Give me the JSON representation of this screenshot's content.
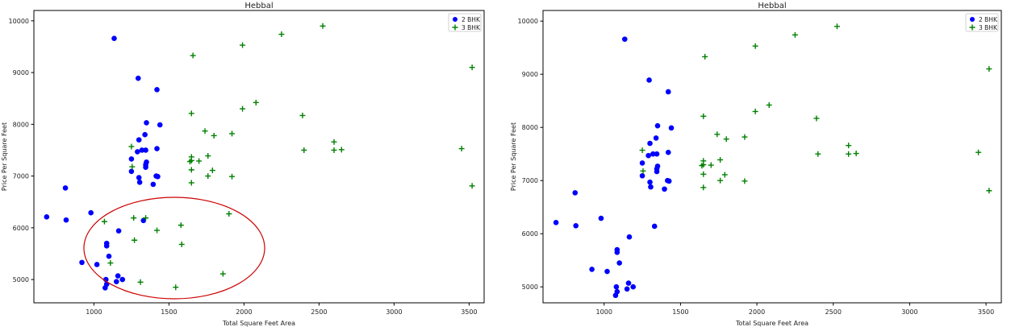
{
  "colors": {
    "series_2bhk": "#0000ff",
    "series_3bhk": "#008000",
    "highlight_ellipse": "#cc0000",
    "axes": "#000000"
  },
  "chart_data": [
    {
      "type": "scatter",
      "title": "Hebbal",
      "xlabel": "Total Square Feet Area",
      "ylabel": "Price Per Square Feet",
      "xlim": [
        600,
        3600
      ],
      "ylim": [
        4550,
        10200
      ],
      "xticks": [
        1000,
        1500,
        2000,
        2500,
        3000,
        3500
      ],
      "yticks": [
        5000,
        6000,
        7000,
        8000,
        9000,
        10000
      ],
      "grid": false,
      "legend": "top-right",
      "series": [
        {
          "name": "2 BHK",
          "marker": "circle",
          "color": "#0000ff",
          "points": [
            [
              1135,
              9660
            ],
            [
              1295,
              8890
            ],
            [
              1420,
              8670
            ],
            [
              1350,
              8030
            ],
            [
              1440,
              7990
            ],
            [
              1340,
              7800
            ],
            [
              1300,
              7700
            ],
            [
              1320,
              7500
            ],
            [
              1345,
              7500
            ],
            [
              1420,
              7530
            ],
            [
              1290,
              7470
            ],
            [
              1250,
              7330
            ],
            [
              1350,
              7270
            ],
            [
              1345,
              7220
            ],
            [
              1345,
              7170
            ],
            [
              1250,
              7090
            ],
            [
              1415,
              7000
            ],
            [
              1425,
              6990
            ],
            [
              1300,
              6970
            ],
            [
              1305,
              6880
            ],
            [
              1395,
              6840
            ],
            [
              685,
              6210
            ],
            [
              810,
              6770
            ],
            [
              815,
              6150
            ],
            [
              980,
              6290
            ],
            [
              1330,
              6140
            ],
            [
              1165,
              5940
            ],
            [
              1085,
              5700
            ],
            [
              1085,
              5650
            ],
            [
              1100,
              5450
            ],
            [
              920,
              5330
            ],
            [
              1020,
              5290
            ],
            [
              1160,
              5070
            ],
            [
              1080,
              5000
            ],
            [
              1190,
              5000
            ],
            [
              1150,
              4960
            ],
            [
              1085,
              4910
            ],
            [
              1075,
              4840
            ]
          ]
        },
        {
          "name": "3 BHK",
          "marker": "plus",
          "color": "#008000",
          "points": [
            [
              2525,
              9900
            ],
            [
              2250,
              9740
            ],
            [
              1990,
              9530
            ],
            [
              3520,
              9100
            ],
            [
              1660,
              9330
            ],
            [
              2080,
              8420
            ],
            [
              1990,
              8300
            ],
            [
              1650,
              8210
            ],
            [
              2390,
              8170
            ],
            [
              1740,
              7870
            ],
            [
              1800,
              7780
            ],
            [
              1920,
              7820
            ],
            [
              2600,
              7660
            ],
            [
              1250,
              7570
            ],
            [
              2400,
              7500
            ],
            [
              2600,
              7500
            ],
            [
              2650,
              7510
            ],
            [
              3450,
              7530
            ],
            [
              1760,
              7390
            ],
            [
              1650,
              7370
            ],
            [
              1650,
              7300
            ],
            [
              1640,
              7280
            ],
            [
              1700,
              7290
            ],
            [
              1255,
              7180
            ],
            [
              1650,
              7120
            ],
            [
              1790,
              7110
            ],
            [
              1760,
              7000
            ],
            [
              1920,
              6990
            ],
            [
              1650,
              6870
            ],
            [
              3520,
              6810
            ],
            [
              1265,
              6190
            ],
            [
              1345,
              6190
            ],
            [
              1070,
              6120
            ],
            [
              1900,
              6270
            ],
            [
              1580,
              6050
            ],
            [
              1420,
              5950
            ],
            [
              1270,
              5760
            ],
            [
              1585,
              5680
            ],
            [
              1110,
              5320
            ],
            [
              1860,
              5110
            ],
            [
              1310,
              4950
            ],
            [
              1545,
              4850
            ]
          ]
        }
      ]
    },
    {
      "type": "scatter",
      "title": "Hebbal",
      "xlabel": "Total Square Feet Area",
      "ylabel": "Price Per Square Feet",
      "xlim": [
        600,
        3600
      ],
      "ylim": [
        4700,
        10200
      ],
      "xticks": [
        1000,
        1500,
        2000,
        2500,
        3000,
        3500
      ],
      "yticks": [
        5000,
        6000,
        7000,
        8000,
        9000,
        10000
      ],
      "grid": false,
      "legend": "top-right",
      "series": [
        {
          "name": "2 BHK",
          "marker": "circle",
          "color": "#0000ff",
          "points": [
            [
              1135,
              9660
            ],
            [
              1295,
              8890
            ],
            [
              1420,
              8670
            ],
            [
              1350,
              8030
            ],
            [
              1440,
              7990
            ],
            [
              1340,
              7800
            ],
            [
              1300,
              7700
            ],
            [
              1320,
              7500
            ],
            [
              1345,
              7500
            ],
            [
              1420,
              7530
            ],
            [
              1290,
              7470
            ],
            [
              1250,
              7330
            ],
            [
              1350,
              7270
            ],
            [
              1345,
              7220
            ],
            [
              1345,
              7170
            ],
            [
              1250,
              7090
            ],
            [
              1415,
              7000
            ],
            [
              1425,
              6990
            ],
            [
              1300,
              6970
            ],
            [
              1305,
              6880
            ],
            [
              1395,
              6840
            ],
            [
              685,
              6210
            ],
            [
              810,
              6770
            ],
            [
              815,
              6150
            ],
            [
              980,
              6290
            ],
            [
              1330,
              6140
            ],
            [
              1165,
              5940
            ],
            [
              1085,
              5700
            ],
            [
              1085,
              5650
            ],
            [
              1100,
              5450
            ],
            [
              920,
              5330
            ],
            [
              1020,
              5290
            ],
            [
              1160,
              5070
            ],
            [
              1080,
              5000
            ],
            [
              1190,
              5000
            ],
            [
              1150,
              4960
            ],
            [
              1085,
              4910
            ],
            [
              1075,
              4840
            ]
          ]
        },
        {
          "name": "3 BHK",
          "marker": "plus",
          "color": "#008000",
          "points": [
            [
              2525,
              9900
            ],
            [
              2250,
              9740
            ],
            [
              1990,
              9530
            ],
            [
              3520,
              9100
            ],
            [
              1660,
              9330
            ],
            [
              2080,
              8420
            ],
            [
              1990,
              8300
            ],
            [
              1650,
              8210
            ],
            [
              2390,
              8170
            ],
            [
              1740,
              7870
            ],
            [
              1800,
              7780
            ],
            [
              1920,
              7820
            ],
            [
              2600,
              7660
            ],
            [
              1250,
              7570
            ],
            [
              2400,
              7500
            ],
            [
              2600,
              7500
            ],
            [
              2650,
              7510
            ],
            [
              3450,
              7530
            ],
            [
              1760,
              7390
            ],
            [
              1650,
              7370
            ],
            [
              1650,
              7300
            ],
            [
              1640,
              7280
            ],
            [
              1700,
              7290
            ],
            [
              1255,
              7180
            ],
            [
              1650,
              7120
            ],
            [
              1790,
              7110
            ],
            [
              1760,
              7000
            ],
            [
              1920,
              6990
            ],
            [
              1650,
              6870
            ],
            [
              3520,
              6810
            ]
          ]
        }
      ]
    }
  ]
}
